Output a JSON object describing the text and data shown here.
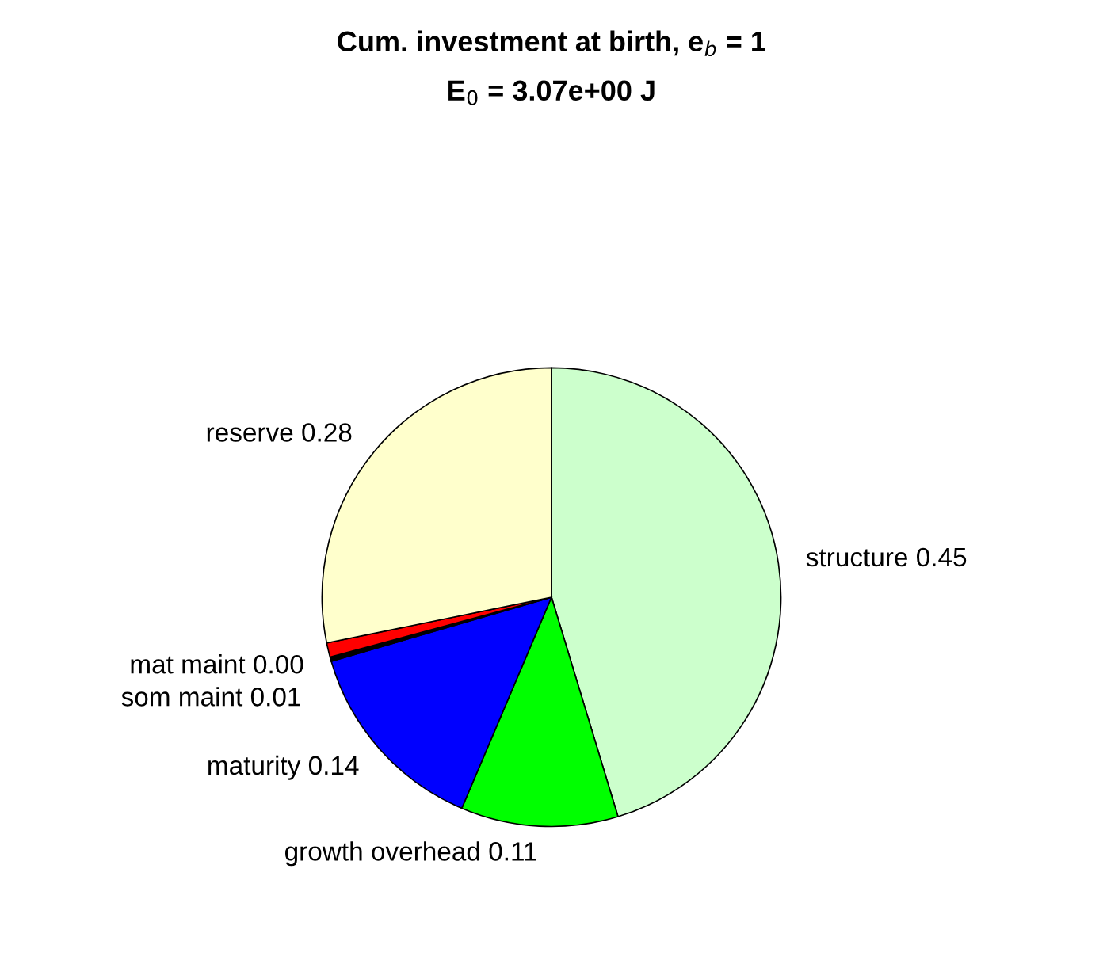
{
  "chart_data": {
    "type": "pie",
    "title": "Cum. investment at birth, e$_{b}$ = 1",
    "subtitle": "E$_{0}$ = 3.07e+00 J",
    "categories": [
      "structure",
      "growth overhead",
      "maturity",
      "mat maint",
      "som maint",
      "reserve"
    ],
    "values": [
      0.45,
      0.11,
      0.14,
      0.003,
      0.01,
      0.28
    ],
    "value_labels": [
      "0.45",
      "0.11",
      "0.14",
      "0.00",
      "0.01",
      "0.28"
    ],
    "colors": [
      "#ccffcc",
      "#00ff00",
      "#0000ff",
      "#000000",
      "#ff0000",
      "#ffffcc"
    ],
    "legend": false
  }
}
